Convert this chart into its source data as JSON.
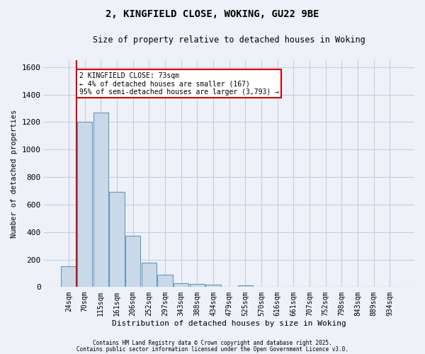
{
  "title_line1": "2, KINGFIELD CLOSE, WOKING, GU22 9BE",
  "title_line2": "Size of property relative to detached houses in Woking",
  "xlabel": "Distribution of detached houses by size in Woking",
  "ylabel": "Number of detached properties",
  "categories": [
    "24sqm",
    "70sqm",
    "115sqm",
    "161sqm",
    "206sqm",
    "252sqm",
    "297sqm",
    "343sqm",
    "388sqm",
    "434sqm",
    "479sqm",
    "525sqm",
    "570sqm",
    "616sqm",
    "661sqm",
    "707sqm",
    "752sqm",
    "798sqm",
    "843sqm",
    "889sqm",
    "934sqm"
  ],
  "values": [
    150,
    1200,
    1270,
    690,
    375,
    175,
    90,
    30,
    25,
    20,
    0,
    15,
    0,
    0,
    0,
    0,
    0,
    0,
    0,
    0,
    0
  ],
  "bar_color": "#c9d9ea",
  "bar_edge_color": "#6699bb",
  "grid_color": "#c5cfe0",
  "background_color": "#eef1f8",
  "red_line_x": 0.5,
  "annotation_text": "2 KINGFIELD CLOSE: 73sqm\n← 4% of detached houses are smaller (167)\n95% of semi-detached houses are larger (3,793) →",
  "annotation_color": "#cc0000",
  "ylim": [
    0,
    1650
  ],
  "yticks": [
    0,
    200,
    400,
    600,
    800,
    1000,
    1200,
    1400,
    1600
  ],
  "footnote1": "Contains HM Land Registry data © Crown copyright and database right 2025.",
  "footnote2": "Contains public sector information licensed under the Open Government Licence v3.0."
}
